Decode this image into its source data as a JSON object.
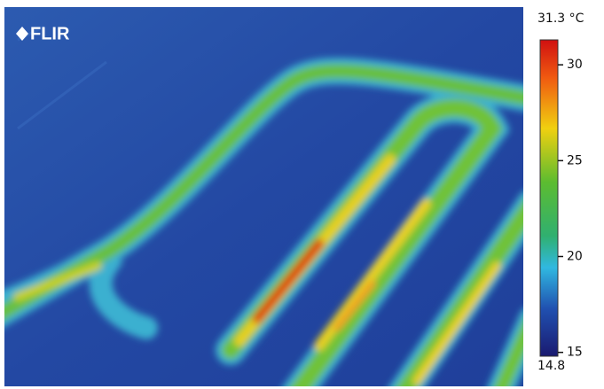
{
  "logo": "FLIR",
  "scale": {
    "max": {
      "value": 31.3,
      "label": "31.3 °C"
    },
    "min": {
      "value": 14.8,
      "label": "14.8"
    },
    "ticks": [
      15,
      20,
      25,
      30
    ]
  }
}
